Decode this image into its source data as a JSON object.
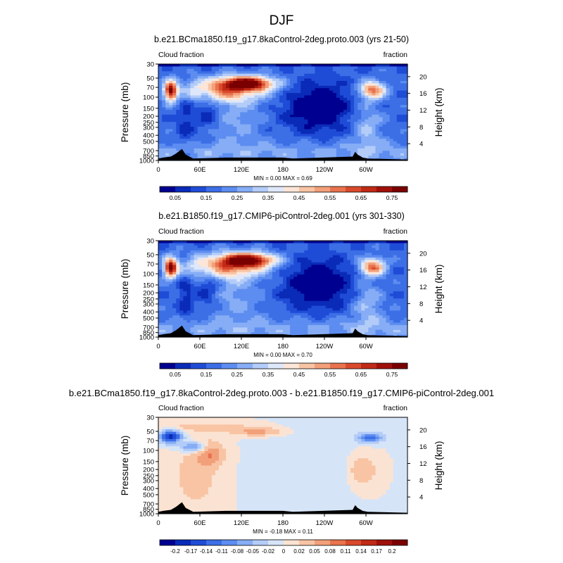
{
  "title": "DJF",
  "colorbar_main": {
    "labels": [
      "0.05",
      "0.15",
      "0.25",
      "0.35",
      "0.45",
      "0.55",
      "0.65",
      "0.75"
    ],
    "colors": [
      "#000090",
      "#0a2bb8",
      "#1f4cd6",
      "#3c6ee6",
      "#5d8df0",
      "#86adf5",
      "#b3ccf8",
      "#dfe8fa",
      "#fde6d8",
      "#f8c4a4",
      "#f2a07a",
      "#e8734e",
      "#d94a2c",
      "#c02a16",
      "#a0100a",
      "#7a0000"
    ]
  },
  "colorbar_diff": {
    "labels": [
      "-0.2",
      "-0.17",
      "-0.14",
      "-0.11",
      "-0.08",
      "-0.05",
      "-0.02",
      "0",
      "0.02",
      "0.05",
      "0.08",
      "0.11",
      "0.14",
      "0.17",
      "0.2"
    ],
    "colors": [
      "#000090",
      "#0a2bb8",
      "#1f4cd6",
      "#3c6ee6",
      "#5d8df0",
      "#86adf5",
      "#b3ccf8",
      "#d6e4f7",
      "#fbe3d3",
      "#f8c4a4",
      "#f2a07a",
      "#e8734e",
      "#d94a2c",
      "#c02a16",
      "#a0100a",
      "#7a0000"
    ]
  },
  "chart_data": [
    {
      "type": "heatmap",
      "title": "b.e21.BCma1850.f19_g17.8kaControl-2deg.proto.003 (yrs 21-50)",
      "left_label": "Cloud fraction",
      "right_label": "fraction",
      "xlabel": "",
      "ylabel": "Pressure (mb)",
      "y2label": "Height (km)",
      "x_ticks": [
        "0",
        "60E",
        "120E",
        "180",
        "120W",
        "60W"
      ],
      "y_ticks": [
        "1000",
        "850",
        "700",
        "500",
        "400",
        "300",
        "250",
        "200",
        "150",
        "100",
        "70",
        "50",
        "30"
      ],
      "y2_ticks": [
        "4",
        "8",
        "12",
        "16",
        "20"
      ],
      "min": 0.0,
      "max": 0.69,
      "stats_text": "MIN =   0.00  MAX =   0.69",
      "field": "main_a"
    },
    {
      "type": "heatmap",
      "title": "b.e21.B1850.f19_g17.CMIP6-piControl-2deg.001 (yrs 301-330)",
      "left_label": "Cloud fraction",
      "right_label": "fraction",
      "xlabel": "",
      "ylabel": "Pressure (mb)",
      "y2label": "Height (km)",
      "x_ticks": [
        "0",
        "60E",
        "120E",
        "180",
        "120W",
        "60W"
      ],
      "y_ticks": [
        "1000",
        "850",
        "700",
        "500",
        "400",
        "300",
        "250",
        "200",
        "150",
        "100",
        "70",
        "50",
        "30"
      ],
      "y2_ticks": [
        "4",
        "8",
        "12",
        "16",
        "20"
      ],
      "min": 0.0,
      "max": 0.7,
      "stats_text": "MIN =   0.00  MAX =   0.70",
      "field": "main_b"
    },
    {
      "type": "heatmap",
      "title": "b.e21.BCma1850.f19_g17.8kaControl-2deg.proto.003 - b.e21.B1850.f19_g17.CMIP6-piControl-2deg.001",
      "left_label": "Cloud fraction",
      "right_label": "fraction",
      "xlabel": "",
      "ylabel": "Pressure (mb)",
      "y2label": "Height (km)",
      "x_ticks": [
        "0",
        "60E",
        "120E",
        "180",
        "120W",
        "60W"
      ],
      "y_ticks": [
        "1000",
        "850",
        "700",
        "500",
        "400",
        "300",
        "250",
        "200",
        "150",
        "100",
        "70",
        "50",
        "30"
      ],
      "y2_ticks": [
        "4",
        "8",
        "12",
        "16",
        "20"
      ],
      "min": -0.18,
      "max": 0.11,
      "stats_text": "MIN =  -0.18  MAX =   0.11",
      "field": "diff"
    }
  ]
}
